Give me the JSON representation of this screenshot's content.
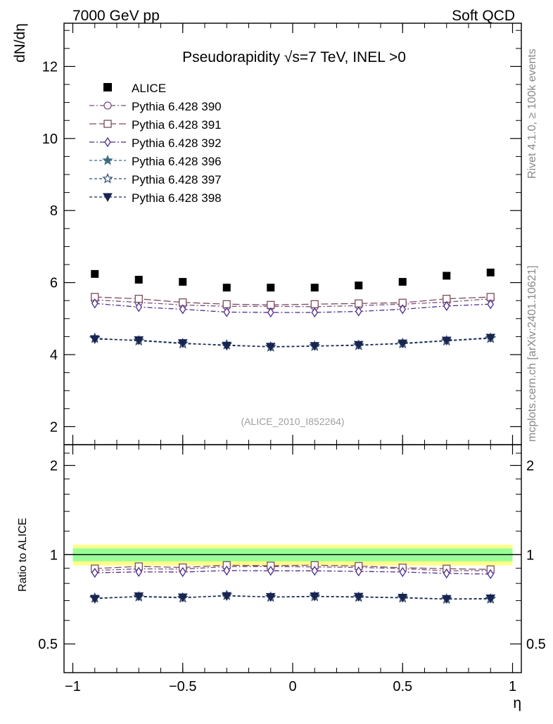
{
  "chart_data": {
    "type": "scatter",
    "header": {
      "left": "7000 GeV pp",
      "right": "Soft QCD"
    },
    "title": "Pseudorapidity √s=7 TeV, INEL >0",
    "side_labels": {
      "top": "Rivet 4.1.0, ≥ 100k events",
      "bottom": "mcplots.cern.ch [arXiv:2401.10621]"
    },
    "analysis_label": "(ALICE_2010_I852264)",
    "xlabel": "η",
    "ylabel_main": "dN/dη",
    "ylabel_ratio": "Ratio to ALICE",
    "xlim": [
      -1.04,
      1.04
    ],
    "ylim_main": [
      1.5,
      13.2
    ],
    "ylim_ratio": [
      0.4,
      2.35
    ],
    "x_ticks": [
      {
        "value": -1,
        "label": "−1"
      },
      {
        "value": -0.5,
        "label": "−0.5"
      },
      {
        "value": 0,
        "label": "0"
      },
      {
        "value": 0.5,
        "label": "0.5"
      },
      {
        "value": 1,
        "label": "1"
      }
    ],
    "y_ticks_main": [
      {
        "value": 2,
        "label": "2"
      },
      {
        "value": 4,
        "label": "4"
      },
      {
        "value": 6,
        "label": "6"
      },
      {
        "value": 8,
        "label": "8"
      },
      {
        "value": 10,
        "label": "10"
      },
      {
        "value": 12,
        "label": "12"
      }
    ],
    "y_ticks_ratio": [
      {
        "value": 0.5,
        "label": "0.5"
      },
      {
        "value": 1,
        "label": "1"
      },
      {
        "value": 2,
        "label": "2"
      }
    ],
    "x": [
      -0.9,
      -0.7,
      -0.5,
      -0.3,
      -0.1,
      0.1,
      0.3,
      0.5,
      0.7,
      0.9
    ],
    "band_inner": 0.05,
    "band_outer": 0.08,
    "reference": {
      "name": "ALICE",
      "color": "#000000",
      "values": [
        6.24,
        6.08,
        6.02,
        5.86,
        5.86,
        5.86,
        5.92,
        6.02,
        6.19,
        6.28
      ]
    },
    "series": [
      {
        "name": "Pythia 6.428 390",
        "color": "#7a4f80",
        "marker": "circle",
        "dash": "7,3,2,3",
        "values": [
          5.52,
          5.45,
          5.38,
          5.34,
          5.34,
          5.33,
          5.36,
          5.4,
          5.46,
          5.55
        ]
      },
      {
        "name": "Pythia 6.428 391",
        "color": "#7c4a5e",
        "marker": "square",
        "dash": "10,4",
        "values": [
          5.6,
          5.55,
          5.45,
          5.4,
          5.38,
          5.4,
          5.42,
          5.44,
          5.55,
          5.6
        ]
      },
      {
        "name": "Pythia 6.428 392",
        "color": "#4b2a8a",
        "marker": "diamond",
        "dash": "7,3,2,3",
        "values": [
          5.42,
          5.32,
          5.26,
          5.18,
          5.17,
          5.17,
          5.2,
          5.26,
          5.35,
          5.4
        ]
      },
      {
        "name": "Pythia 6.428 396",
        "color": "#3f6a86",
        "marker": "star-filled",
        "dash": "4,3",
        "values": [
          4.46,
          4.38,
          4.31,
          4.27,
          4.22,
          4.24,
          4.25,
          4.32,
          4.39,
          4.46
        ]
      },
      {
        "name": "Pythia 6.428 397",
        "color": "#2e4a6e",
        "marker": "star-open",
        "dash": "4,3",
        "values": [
          4.45,
          4.39,
          4.3,
          4.27,
          4.21,
          4.23,
          4.26,
          4.3,
          4.38,
          4.45
        ]
      },
      {
        "name": "Pythia 6.428 398",
        "color": "#1a2450",
        "marker": "triangle-down",
        "dash": "4,3",
        "values": [
          4.43,
          4.4,
          4.32,
          4.25,
          4.22,
          4.24,
          4.27,
          4.31,
          4.39,
          4.47
        ]
      }
    ]
  }
}
